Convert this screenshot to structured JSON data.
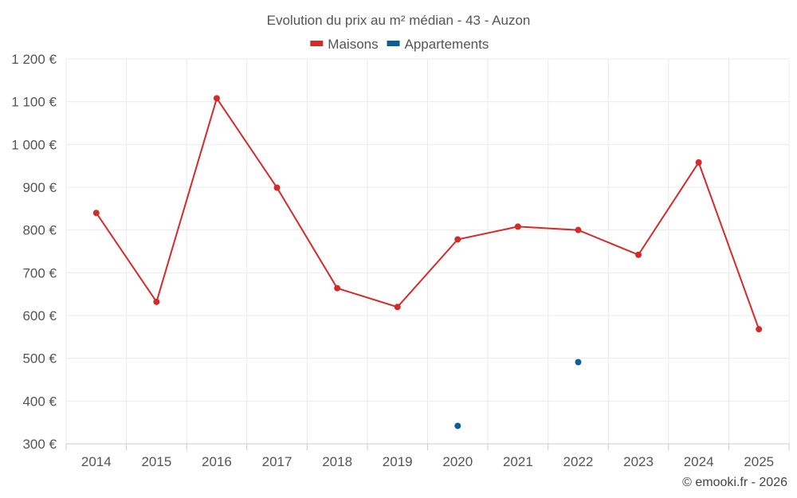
{
  "chart_data": {
    "type": "line",
    "title": "Evolution du prix au m² médian - 43 - Auzon",
    "categories": [
      "2014",
      "2015",
      "2016",
      "2017",
      "2018",
      "2019",
      "2020",
      "2021",
      "2022",
      "2023",
      "2024",
      "2025"
    ],
    "series": [
      {
        "name": "Maisons",
        "color": "#d42a2a",
        "values": [
          840,
          632,
          1108,
          899,
          664,
          620,
          778,
          808,
          800,
          742,
          958,
          568
        ]
      },
      {
        "name": "Appartements",
        "color": "#0b5e96",
        "values": [
          null,
          null,
          null,
          null,
          null,
          null,
          342,
          null,
          491,
          null,
          null,
          null
        ]
      }
    ],
    "yticks": [
      "300 €",
      "400 €",
      "500 €",
      "600 €",
      "700 €",
      "800 €",
      "900 €",
      "1 000 €",
      "1 100 €",
      "1 200 €"
    ],
    "ylim": [
      300,
      1200
    ],
    "grid": true,
    "legend_position": "top-center",
    "credit": "© emooki.fr - 2026"
  }
}
